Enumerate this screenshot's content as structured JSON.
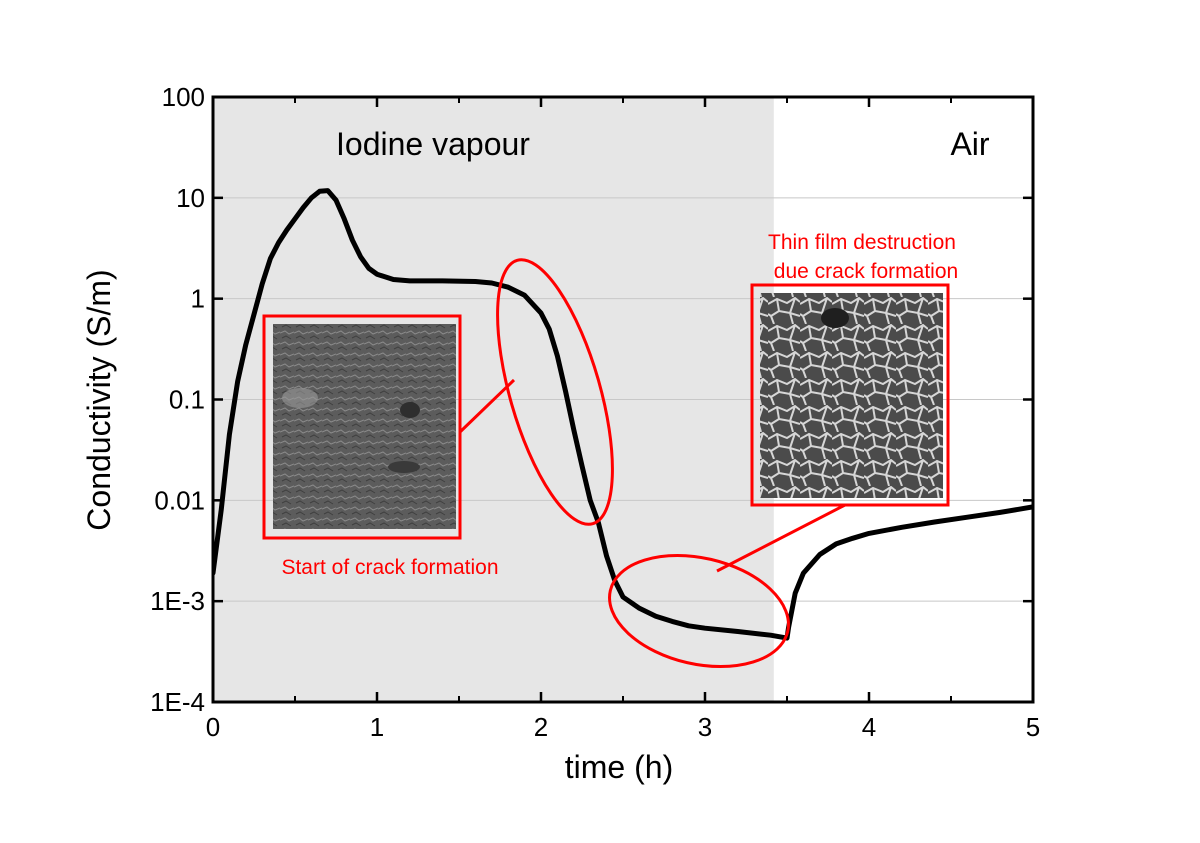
{
  "chart_data": {
    "type": "line",
    "xlabel": "time (h)",
    "ylabel": "Conductivity (S/m)",
    "xlim": [
      0,
      5
    ],
    "ylim": [
      0.0001,
      100
    ],
    "yscale": "log",
    "grid": "horizontal major lines",
    "x_ticks": [
      {
        "value": 0,
        "label": "0"
      },
      {
        "value": 1,
        "label": "1"
      },
      {
        "value": 2,
        "label": "2"
      },
      {
        "value": 3,
        "label": "3"
      },
      {
        "value": 4,
        "label": "4"
      },
      {
        "value": 5,
        "label": "5"
      }
    ],
    "y_ticks": [
      {
        "value": 0.0001,
        "label": "1E-4"
      },
      {
        "value": 0.001,
        "label": "1E-3"
      },
      {
        "value": 0.01,
        "label": "0.01"
      },
      {
        "value": 0.1,
        "label": "0.1"
      },
      {
        "value": 1,
        "label": "1"
      },
      {
        "value": 10,
        "label": "10"
      },
      {
        "value": 100,
        "label": "100"
      }
    ],
    "regions": [
      {
        "label": "Iodine vapour",
        "x_start": 0,
        "x_end": 3.42,
        "color": "#e6e6e6"
      },
      {
        "label": "Air",
        "x_start": 3.42,
        "x_end": 5,
        "color": "#ffffff"
      }
    ],
    "series": [
      {
        "color": "#000000",
        "points": [
          [
            0.0,
            0.0019
          ],
          [
            0.05,
            0.008
          ],
          [
            0.1,
            0.045
          ],
          [
            0.15,
            0.15
          ],
          [
            0.2,
            0.35
          ],
          [
            0.25,
            0.7
          ],
          [
            0.3,
            1.4
          ],
          [
            0.35,
            2.5
          ],
          [
            0.4,
            3.6
          ],
          [
            0.45,
            4.8
          ],
          [
            0.5,
            6.2
          ],
          [
            0.55,
            8.0
          ],
          [
            0.6,
            10.0
          ],
          [
            0.65,
            11.6
          ],
          [
            0.7,
            11.8
          ],
          [
            0.75,
            9.5
          ],
          [
            0.8,
            6.2
          ],
          [
            0.85,
            3.8
          ],
          [
            0.9,
            2.6
          ],
          [
            0.95,
            2.0
          ],
          [
            1.0,
            1.75
          ],
          [
            1.1,
            1.55
          ],
          [
            1.2,
            1.5
          ],
          [
            1.4,
            1.5
          ],
          [
            1.6,
            1.48
          ],
          [
            1.7,
            1.43
          ],
          [
            1.8,
            1.3
          ],
          [
            1.9,
            1.08
          ],
          [
            2.0,
            0.72
          ],
          [
            2.05,
            0.5
          ],
          [
            2.1,
            0.27
          ],
          [
            2.15,
            0.12
          ],
          [
            2.2,
            0.05
          ],
          [
            2.25,
            0.022
          ],
          [
            2.3,
            0.01
          ],
          [
            2.35,
            0.006
          ],
          [
            2.4,
            0.0028
          ],
          [
            2.45,
            0.0016
          ],
          [
            2.5,
            0.0011
          ],
          [
            2.6,
            0.00085
          ],
          [
            2.7,
            0.00071
          ],
          [
            2.8,
            0.00063
          ],
          [
            2.9,
            0.00057
          ],
          [
            3.0,
            0.00054
          ],
          [
            3.2,
            0.0005
          ],
          [
            3.4,
            0.00046
          ],
          [
            3.5,
            0.00043
          ],
          [
            3.51,
            0.00055
          ],
          [
            3.55,
            0.0012
          ],
          [
            3.6,
            0.0019
          ],
          [
            3.7,
            0.0029
          ],
          [
            3.8,
            0.0037
          ],
          [
            3.9,
            0.0042
          ],
          [
            4.0,
            0.0047
          ],
          [
            4.2,
            0.0054
          ],
          [
            4.4,
            0.0061
          ],
          [
            4.6,
            0.0068
          ],
          [
            4.8,
            0.0076
          ],
          [
            5.0,
            0.0086
          ]
        ]
      }
    ],
    "annotations": [
      {
        "text": "Start of crack formation",
        "color": "#ff0000",
        "ellipse_center": [
          1.88,
          0.07
        ]
      },
      {
        "text": "Thin film destruction",
        "text2": "due crack formation",
        "color": "#ff0000",
        "ellipse_center": [
          3.15,
          0.0008
        ]
      }
    ]
  }
}
